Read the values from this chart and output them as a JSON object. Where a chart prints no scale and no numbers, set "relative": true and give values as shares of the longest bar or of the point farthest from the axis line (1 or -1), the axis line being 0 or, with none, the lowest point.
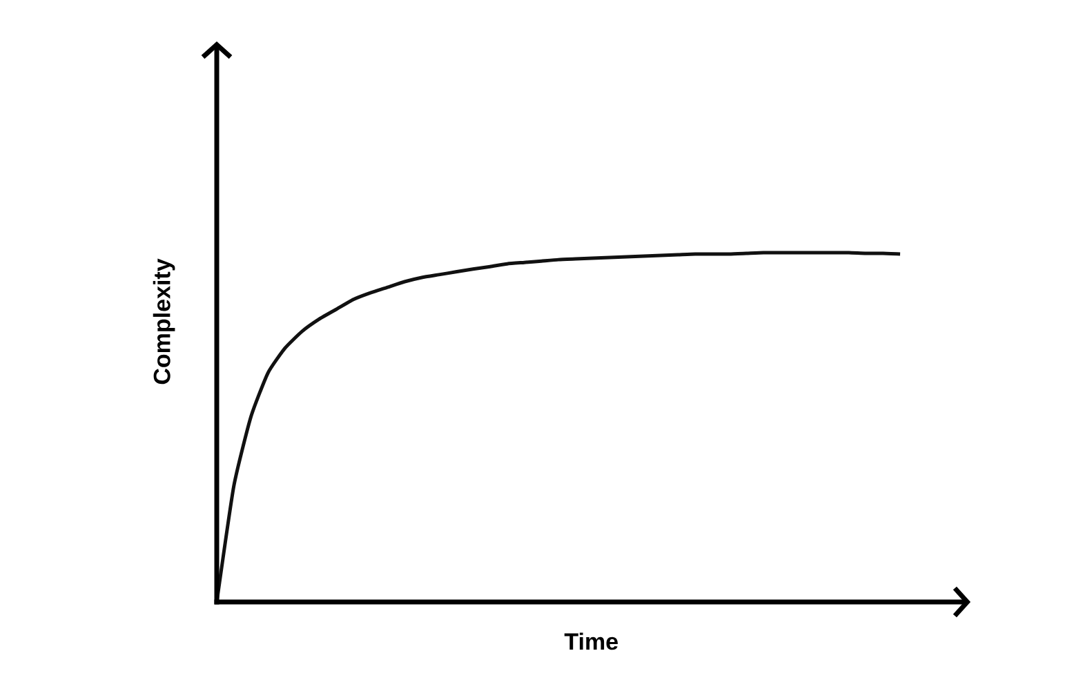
{
  "chart_data": {
    "type": "line",
    "relative": true,
    "xlabel": "Time",
    "ylabel": "Complexity",
    "color": "#111111",
    "categories": [
      null,
      null,
      null,
      null,
      null,
      null,
      null,
      null,
      null,
      null,
      null,
      null,
      null,
      null,
      null,
      null,
      null,
      null,
      null,
      null,
      null,
      null,
      null,
      null,
      null,
      null,
      null,
      null,
      null,
      null,
      null,
      null,
      null,
      null,
      null,
      null,
      null,
      null,
      null,
      null,
      null
    ],
    "values": [
      0,
      0.332,
      0.53,
      0.656,
      0.727,
      0.775,
      0.81,
      0.838,
      0.866,
      0.885,
      0.901,
      0.917,
      0.929,
      0.937,
      0.945,
      0.953,
      0.96,
      0.968,
      0.972,
      0.976,
      0.98,
      0.982,
      0.984,
      0.986,
      0.988,
      0.99,
      0.992,
      0.994,
      0.996,
      0.996,
      0.996,
      0.998,
      1,
      1,
      1,
      1,
      1,
      1,
      0.998,
      0.998,
      0.996
    ]
  }
}
